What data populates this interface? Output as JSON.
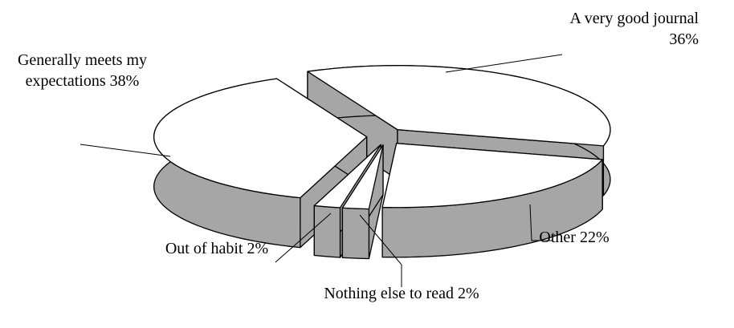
{
  "chart_data": {
    "type": "pie3d",
    "categories": [
      "A very good journal",
      "Other",
      "Nothing else to read",
      "Out of habit",
      "Generally meets my expectations"
    ],
    "values": [
      36,
      22,
      2,
      2,
      38
    ],
    "value_labels": [
      "36%",
      "22%",
      "2%",
      "2%",
      "38%"
    ],
    "colors": {
      "top": "#ffffff",
      "side": "#a6a6a6",
      "edge": "#000000"
    }
  }
}
